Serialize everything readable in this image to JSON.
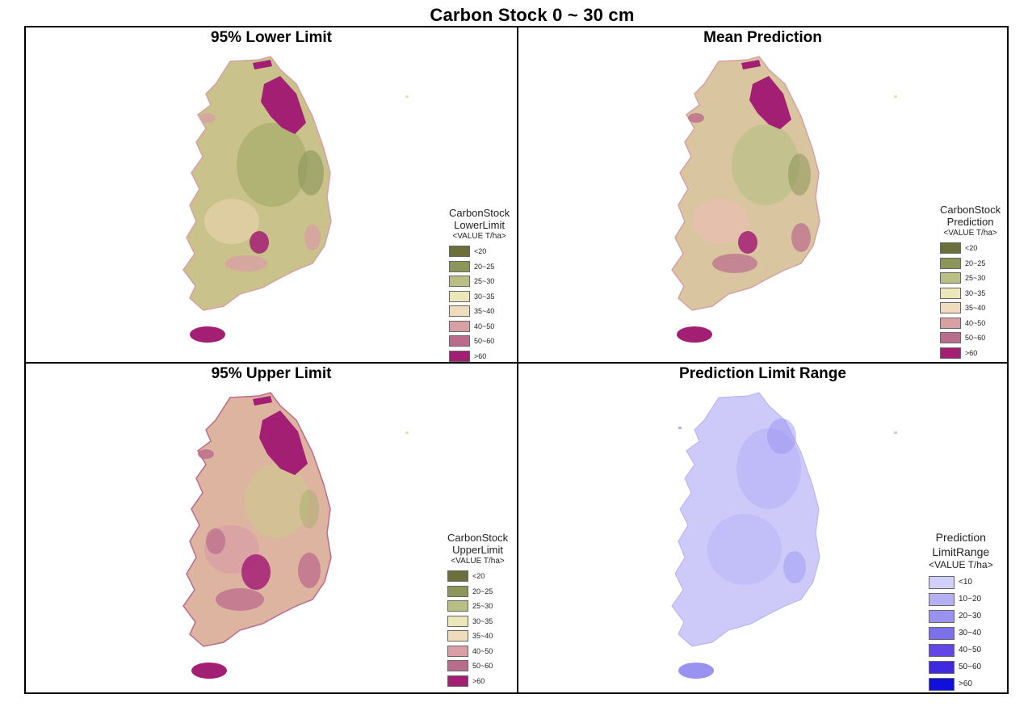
{
  "figure": {
    "title": "Carbon Stock 0 ~ 30 cm"
  },
  "panels": [
    {
      "id": "lower",
      "title": "95% Lower Limit",
      "legend": {
        "title_lines": [
          "CarbonStock",
          "LowerLimit"
        ],
        "unit": "<VALUE T/ha>",
        "items": [
          {
            "label": "<20",
            "color": "#6b6f3a"
          },
          {
            "label": "20~25",
            "color": "#8c955a"
          },
          {
            "label": "25~30",
            "color": "#b9bf84"
          },
          {
            "label": "30~35",
            "color": "#ece7b8"
          },
          {
            "label": "35~40",
            "color": "#efdcbc"
          },
          {
            "label": "40~50",
            "color": "#d8a0a4"
          },
          {
            "label": "50~60",
            "color": "#bb6b8c"
          },
          {
            "label": ">60",
            "color": "#a31f74"
          }
        ]
      }
    },
    {
      "id": "mean",
      "title": "Mean Prediction",
      "legend": {
        "title_lines": [
          "CarbonStock",
          "Prediction"
        ],
        "unit": "<VALUE T/ha>",
        "items": [
          {
            "label": "<20",
            "color": "#6b6f3a"
          },
          {
            "label": "20~25",
            "color": "#8c955a"
          },
          {
            "label": "25~30",
            "color": "#b9bf84"
          },
          {
            "label": "30~35",
            "color": "#ece7b8"
          },
          {
            "label": "35~40",
            "color": "#efdcbc"
          },
          {
            "label": "40~50",
            "color": "#d8a0a4"
          },
          {
            "label": "50~60",
            "color": "#bb6b8c"
          },
          {
            "label": ">60",
            "color": "#a31f74"
          }
        ]
      }
    },
    {
      "id": "upper",
      "title": "95% Upper Limit",
      "legend": {
        "title_lines": [
          "CarbonStock",
          "UpperLimit"
        ],
        "unit": "<VALUE T/ha>",
        "items": [
          {
            "label": "<20",
            "color": "#6b6f3a"
          },
          {
            "label": "20~25",
            "color": "#8c955a"
          },
          {
            "label": "25~30",
            "color": "#b9bf84"
          },
          {
            "label": "30~35",
            "color": "#ece7b8"
          },
          {
            "label": "35~40",
            "color": "#efdcbc"
          },
          {
            "label": "40~50",
            "color": "#d8a0a4"
          },
          {
            "label": "50~60",
            "color": "#bb6b8c"
          },
          {
            "label": ">60",
            "color": "#a31f74"
          }
        ]
      }
    },
    {
      "id": "range",
      "title": "Prediction Limit Range",
      "legend": {
        "title_lines": [
          "Prediction",
          "LimitRange"
        ],
        "unit": "<VALUE T/ha>",
        "items": [
          {
            "label": "<10",
            "color": "#d2d0fb"
          },
          {
            "label": "10~20",
            "color": "#b5b0f6"
          },
          {
            "label": "20~30",
            "color": "#9a92f1"
          },
          {
            "label": "30~40",
            "color": "#7d6fea"
          },
          {
            "label": "40~50",
            "color": "#6246e6"
          },
          {
            "label": "50~60",
            "color": "#3f2ae0"
          },
          {
            "label": ">60",
            "color": "#1010dd"
          }
        ]
      }
    }
  ]
}
